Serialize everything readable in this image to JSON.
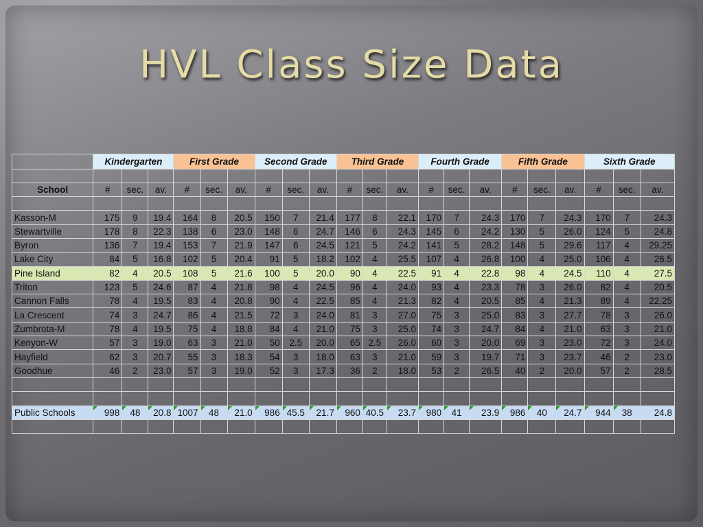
{
  "title": "HVL Class Size Data",
  "grades": [
    "Kindergarten",
    "First Grade",
    "Second Grade",
    "Third Grade",
    "Fourth Grade",
    "Fifth Grade",
    "Sixth Grade"
  ],
  "grade_colors": [
    "#dceefa",
    "#f9c294",
    "#dceefa",
    "#f9c294",
    "#dceefa",
    "#f9c294",
    "#dceefa"
  ],
  "school_header": "School",
  "sub_headers": [
    "#",
    "sec.",
    "av."
  ],
  "schools": [
    {
      "name": "Kasson-M",
      "vals": [
        "175",
        "9",
        "19.4",
        "164",
        "8",
        "20.5",
        "150",
        "7",
        "21.4",
        "177",
        "8",
        "22.1",
        "170",
        "7",
        "24.3",
        "170",
        "7",
        "24.3",
        "170",
        "7",
        "24.3"
      ]
    },
    {
      "name": "Stewartville",
      "vals": [
        "178",
        "8",
        "22.3",
        "138",
        "6",
        "23.0",
        "148",
        "6",
        "24.7",
        "146",
        "6",
        "24.3",
        "145",
        "6",
        "24.2",
        "130",
        "5",
        "26.0",
        "124",
        "5",
        "24.8"
      ]
    },
    {
      "name": "Byron",
      "vals": [
        "136",
        "7",
        "19.4",
        "153",
        "7",
        "21.9",
        "147",
        "6",
        "24.5",
        "121",
        "5",
        "24.2",
        "141",
        "5",
        "28.2",
        "148",
        "5",
        "29.6",
        "117",
        "4",
        "29.25"
      ]
    },
    {
      "name": "Lake City",
      "vals": [
        "84",
        "5",
        "16.8",
        "102",
        "5",
        "20.4",
        "91",
        "5",
        "18.2",
        "102",
        "4",
        "25.5",
        "107",
        "4",
        "26.8",
        "100",
        "4",
        "25.0",
        "106",
        "4",
        "26.5"
      ]
    },
    {
      "name": "Pine Island",
      "highlight": true,
      "vals": [
        "82",
        "4",
        "20.5",
        "108",
        "5",
        "21.6",
        "100",
        "5",
        "20.0",
        "90",
        "4",
        "22.5",
        "91",
        "4",
        "22.8",
        "98",
        "4",
        "24.5",
        "110",
        "4",
        "27.5"
      ]
    },
    {
      "name": "Triton",
      "vals": [
        "123",
        "5",
        "24.6",
        "87",
        "4",
        "21.8",
        "98",
        "4",
        "24.5",
        "96",
        "4",
        "24.0",
        "93",
        "4",
        "23.3",
        "78",
        "3",
        "26.0",
        "82",
        "4",
        "20.5"
      ]
    },
    {
      "name": "Cannon Falls",
      "vals": [
        "78",
        "4",
        "19.5",
        "83",
        "4",
        "20.8",
        "90",
        "4",
        "22.5",
        "85",
        "4",
        "21.3",
        "82",
        "4",
        "20.5",
        "85",
        "4",
        "21.3",
        "89",
        "4",
        "22.25"
      ]
    },
    {
      "name": "La Crescent",
      "vals": [
        "74",
        "3",
        "24.7",
        "86",
        "4",
        "21.5",
        "72",
        "3",
        "24.0",
        "81",
        "3",
        "27.0",
        "75",
        "3",
        "25.0",
        "83",
        "3",
        "27.7",
        "78",
        "3",
        "26.0"
      ]
    },
    {
      "name": "Zumbrota-M",
      "vals": [
        "78",
        "4",
        "19.5",
        "75",
        "4",
        "18.8",
        "84",
        "4",
        "21.0",
        "75",
        "3",
        "25.0",
        "74",
        "3",
        "24.7",
        "84",
        "4",
        "21.0",
        "63",
        "3",
        "21.0"
      ]
    },
    {
      "name": "Kenyon-W",
      "vals": [
        "57",
        "3",
        "19.0",
        "63",
        "3",
        "21.0",
        "50",
        "2.5",
        "20.0",
        "65",
        "2.5",
        "26.0",
        "60",
        "3",
        "20.0",
        "69",
        "3",
        "23.0",
        "72",
        "3",
        "24.0"
      ]
    },
    {
      "name": "Hayfield",
      "vals": [
        "62",
        "3",
        "20.7",
        "55",
        "3",
        "18.3",
        "54",
        "3",
        "18.0",
        "63",
        "3",
        "21.0",
        "59",
        "3",
        "19.7",
        "71",
        "3",
        "23.7",
        "46",
        "2",
        "23.0"
      ]
    },
    {
      "name": "Goodhue",
      "vals": [
        "46",
        "2",
        "23.0",
        "57",
        "3",
        "19.0",
        "52",
        "3",
        "17.3",
        "36",
        "2",
        "18.0",
        "53",
        "2",
        "26.5",
        "40",
        "2",
        "20.0",
        "57",
        "2",
        "28.5"
      ]
    }
  ],
  "total": {
    "name": "Public Schools",
    "vals": [
      "998",
      "48",
      "20.8",
      "1007",
      "48",
      "21.0",
      "986",
      "45.5",
      "21.7",
      "960",
      "40.5",
      "23.7",
      "980",
      "41",
      "23.9",
      "986",
      "40",
      "24.7",
      "944",
      "38",
      "24.8"
    ]
  }
}
